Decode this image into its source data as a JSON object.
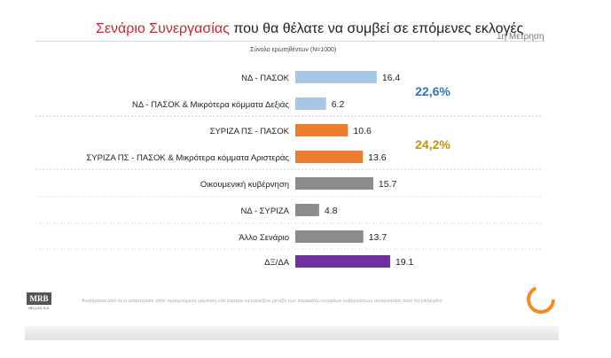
{
  "header": {
    "title_highlight": "Σενάριο Συνεργασίας",
    "title_rest": "που θα θέλατε να συμβεί σε επόμενες εκλογές",
    "measurement": "1η Μέτρηση",
    "subtitle": "Σύνολο ερωτηθέντων (N=1000)"
  },
  "footer": {
    "note": "Ανεξάρτητα από το τι απαντήσατε στην προηγούμενη ερώτηση εάν έπρεπε να επιλέξετε μεταξύ των παρακάτω σεναρίων κυβερνήσεων συνεργασίας ποιο θα επιλέγατε;",
    "mrb_logo": "MRB",
    "mrb_sub": "HELLAS S.A."
  },
  "colors": {
    "blue": "#a7c7e7",
    "orange": "#ed7d31",
    "gray": "#8c8c8c",
    "purple": "#7030a0",
    "group_blue_text": "#2e75b6",
    "group_orange_text": "#c69214"
  },
  "chart_data": {
    "type": "bar",
    "orientation": "horizontal",
    "categories": [
      "ΝΔ - ΠΑΣΟΚ",
      "ΝΔ - ΠΑΣΟΚ & Μικρότερα κόμματα Δεξιάς",
      "ΣΥΡΙΖΑ ΠΣ - ΠΑΣΟΚ",
      "ΣΥΡΙΖΑ ΠΣ - ΠΑΣΟΚ & Μικρότερα κόμματα Αριστεράς",
      "Οικουμενική κυβέρνηση",
      "ΝΔ - ΣΥΡΙΖΑ",
      "Άλλο Σενάριο",
      "ΔΞ/ΔΑ"
    ],
    "values": [
      16.4,
      6.2,
      10.6,
      13.6,
      15.7,
      4.8,
      13.7,
      19.1
    ],
    "value_labels": [
      "16.4",
      "6.2",
      "10.6",
      "13.6",
      "15.7",
      "4.8",
      "13.7",
      "19.1"
    ],
    "bar_colors": [
      "blue",
      "blue",
      "orange",
      "orange",
      "gray",
      "gray",
      "gray",
      "purple"
    ],
    "xlim": [
      0,
      20
    ],
    "groups": [
      {
        "label": "22,6%",
        "rows": [
          0,
          1
        ],
        "color": "group_blue_text"
      },
      {
        "label": "24,2%",
        "rows": [
          2,
          3
        ],
        "color": "group_orange_text"
      }
    ],
    "grid": false,
    "legend": "none"
  }
}
